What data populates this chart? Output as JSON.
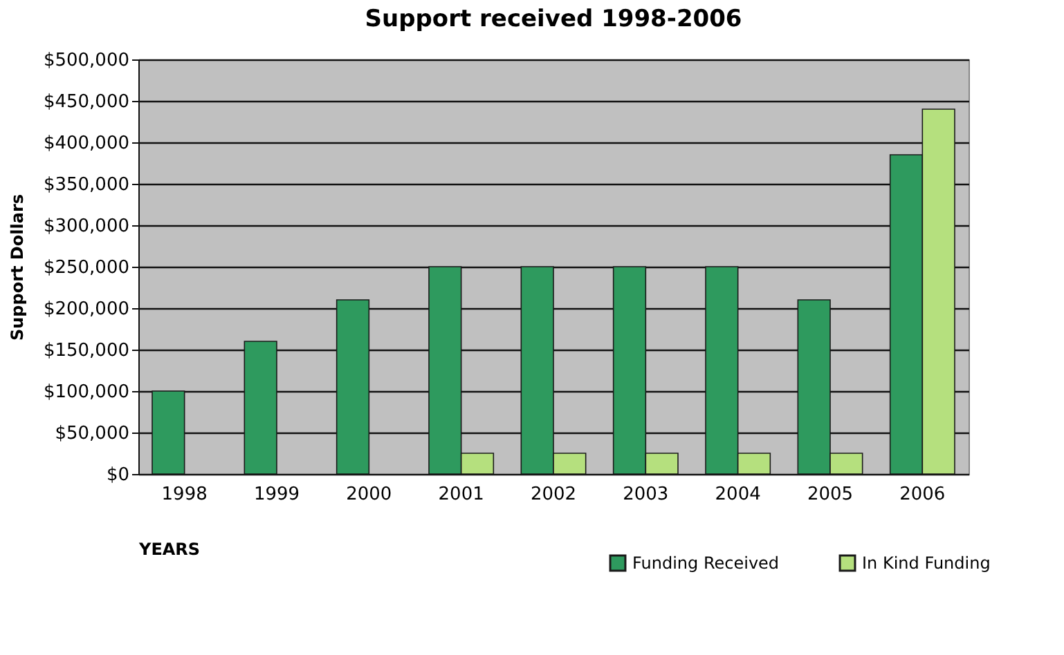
{
  "chart_data": {
    "type": "bar",
    "title": "Support received 1998-2006",
    "xlabel": "YEARS",
    "ylabel": "Support Dollars",
    "categories": [
      "1998",
      "1999",
      "2000",
      "2001",
      "2002",
      "2003",
      "2004",
      "2005",
      "2006"
    ],
    "series": [
      {
        "name": "Funding Received",
        "color": "#2e9a5e",
        "values": [
          100000,
          160000,
          210000,
          250000,
          250000,
          250000,
          250000,
          210000,
          385000
        ]
      },
      {
        "name": "In Kind Funding",
        "color": "#b5e07e",
        "values": [
          null,
          null,
          null,
          25000,
          25000,
          25000,
          25000,
          25000,
          440000
        ]
      }
    ],
    "ylim": [
      0,
      500000
    ],
    "yticks": [
      {
        "value": 0,
        "label": "$0"
      },
      {
        "value": 50000,
        "label": "$50,000"
      },
      {
        "value": 100000,
        "label": "$100,000"
      },
      {
        "value": 150000,
        "label": "$150,000"
      },
      {
        "value": 200000,
        "label": "$200,000"
      },
      {
        "value": 250000,
        "label": "$250,000"
      },
      {
        "value": 300000,
        "label": "$300,000"
      },
      {
        "value": 350000,
        "label": "$350,000"
      },
      {
        "value": 400000,
        "label": "$400,000"
      },
      {
        "value": 450000,
        "label": "$450,000"
      },
      {
        "value": 500000,
        "label": "$500,000"
      }
    ],
    "grid": "y",
    "legend": "bottom right"
  }
}
